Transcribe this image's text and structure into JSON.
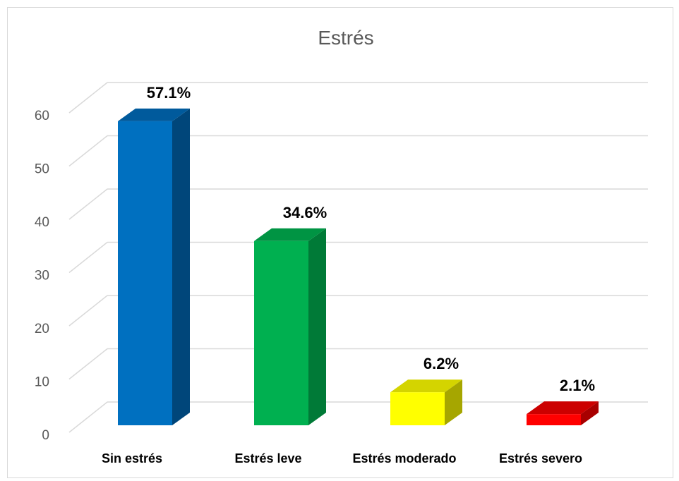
{
  "chart_data": {
    "type": "bar",
    "title": "Estrés",
    "categories": [
      "Sin estrés",
      "Estrés leve",
      "Estrés moderado",
      "Estrés severo"
    ],
    "values": [
      57.1,
      34.6,
      6.2,
      2.1
    ],
    "data_labels": [
      "57.1%",
      "34.6%",
      "6.2%",
      "2.1%"
    ],
    "ylim": [
      0,
      60
    ],
    "yticks": [
      "0",
      "10",
      "20",
      "30",
      "40",
      "50",
      "60"
    ],
    "grid": true,
    "style": "3d-column",
    "colors": [
      {
        "front": "#0070c0",
        "side": "#00467a",
        "top": "#005a9c"
      },
      {
        "front": "#00b050",
        "side": "#007a37",
        "top": "#009443"
      },
      {
        "front": "#ffff00",
        "side": "#a6a600",
        "top": "#d4d400"
      },
      {
        "front": "#ff0000",
        "side": "#a80000",
        "top": "#cc0000"
      }
    ]
  }
}
